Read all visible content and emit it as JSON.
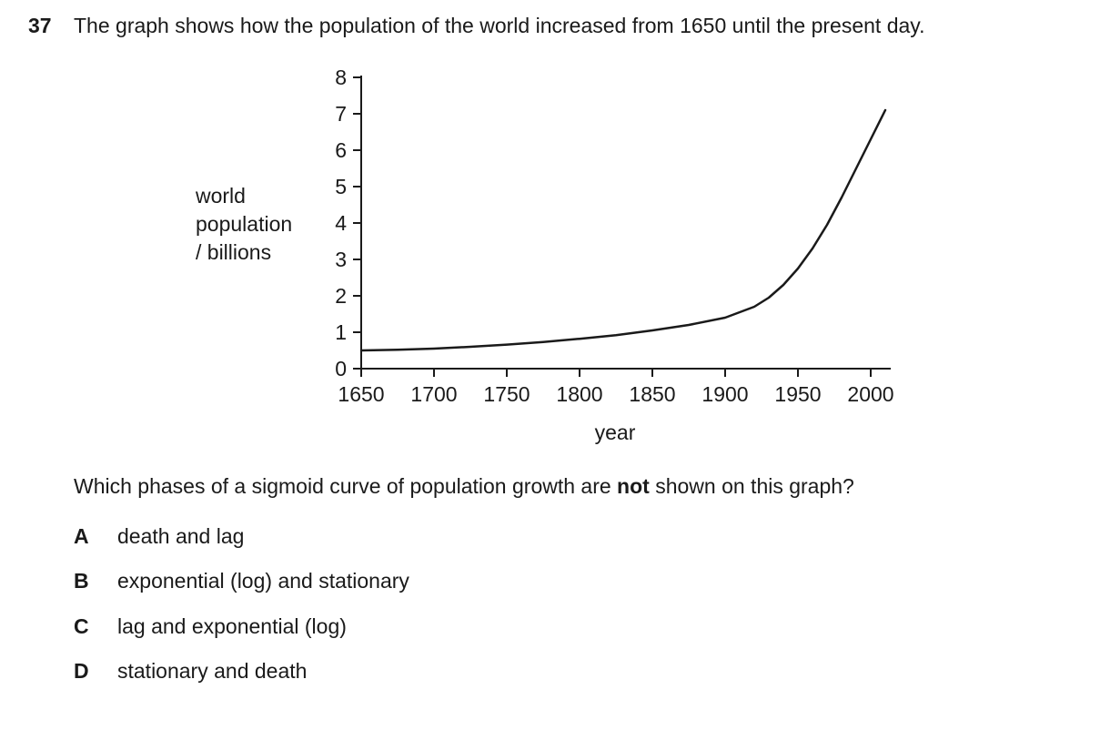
{
  "question": {
    "number": "37",
    "text": "The graph shows how the population of the world increased from 1650 until the present day.",
    "prompt_before": "Which phases of a sigmoid curve of population growth are ",
    "prompt_bold": "not",
    "prompt_after": " shown on this graph?",
    "options": [
      {
        "letter": "A",
        "text": "death and lag"
      },
      {
        "letter": "B",
        "text": "exponential (log) and stationary"
      },
      {
        "letter": "C",
        "text": "lag and exponential (log)"
      },
      {
        "letter": "D",
        "text": "stationary and death"
      }
    ]
  },
  "chart_data": {
    "type": "line",
    "title": "",
    "xlabel": "year",
    "ylabel_lines": [
      "world",
      "population",
      "/ billions"
    ],
    "xticks": [
      1650,
      1700,
      1750,
      1800,
      1850,
      1900,
      1950,
      2000
    ],
    "yticks": [
      0,
      1,
      2,
      3,
      4,
      5,
      6,
      7,
      8
    ],
    "xlim": [
      1650,
      2013
    ],
    "ylim": [
      0,
      8
    ],
    "grid": false,
    "series": [
      {
        "x": [
          1650,
          1675,
          1700,
          1725,
          1750,
          1775,
          1800,
          1825,
          1850,
          1875,
          1900,
          1920,
          1930,
          1940,
          1950,
          1960,
          1970,
          1980,
          1990,
          2000,
          2010
        ],
        "y": [
          0.5,
          0.52,
          0.55,
          0.6,
          0.66,
          0.73,
          0.82,
          0.92,
          1.05,
          1.2,
          1.4,
          1.7,
          1.95,
          2.3,
          2.75,
          3.3,
          3.95,
          4.7,
          5.5,
          6.3,
          7.1
        ]
      }
    ]
  }
}
